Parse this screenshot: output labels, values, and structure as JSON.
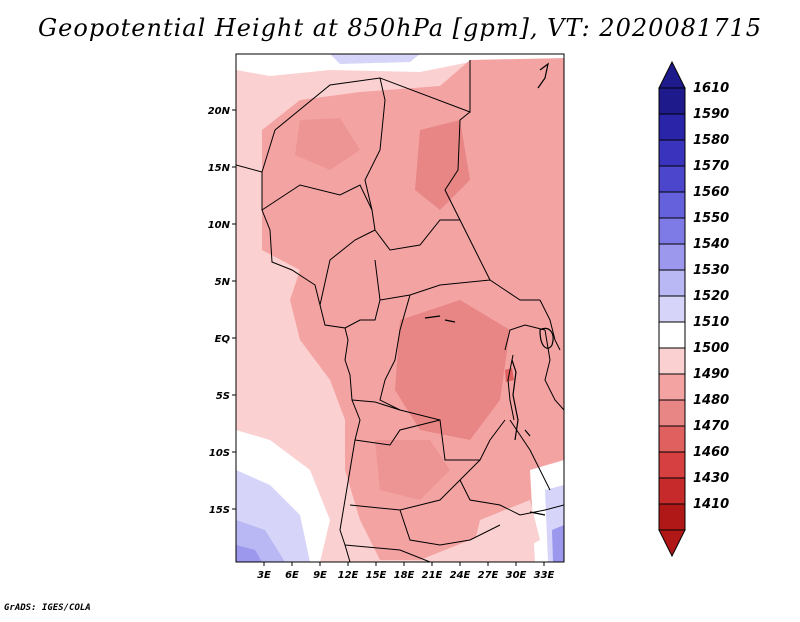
{
  "title": "Geopotential Height at 850hPa [gpm], VT: 2020081715",
  "footer": "GrADS: IGES/COLA",
  "map": {
    "lat_labels": [
      "20N",
      "15N",
      "10N",
      "5N",
      "EQ",
      "5S",
      "10S",
      "15S"
    ],
    "lon_labels": [
      "3E",
      "6E",
      "9E",
      "12E",
      "15E",
      "18E",
      "21E",
      "24E",
      "27E",
      "30E",
      "33E"
    ]
  },
  "colorbar": {
    "labels": [
      "1610",
      "1590",
      "1580",
      "1570",
      "1560",
      "1550",
      "1540",
      "1530",
      "1520",
      "1510",
      "1500",
      "1490",
      "1480",
      "1470",
      "1460",
      "1430",
      "1410"
    ],
    "colors": [
      "#1e1a8c",
      "#2a24a8",
      "#3a33bd",
      "#4c46cc",
      "#6560dc",
      "#7f7be6",
      "#9b98ee",
      "#b9b7f4",
      "#d6d5f9",
      "#ffffff",
      "#fbd0d0",
      "#f4a3a3",
      "#e88585",
      "#e06060",
      "#d64040",
      "#c72a2a",
      "#b01818"
    ]
  }
}
